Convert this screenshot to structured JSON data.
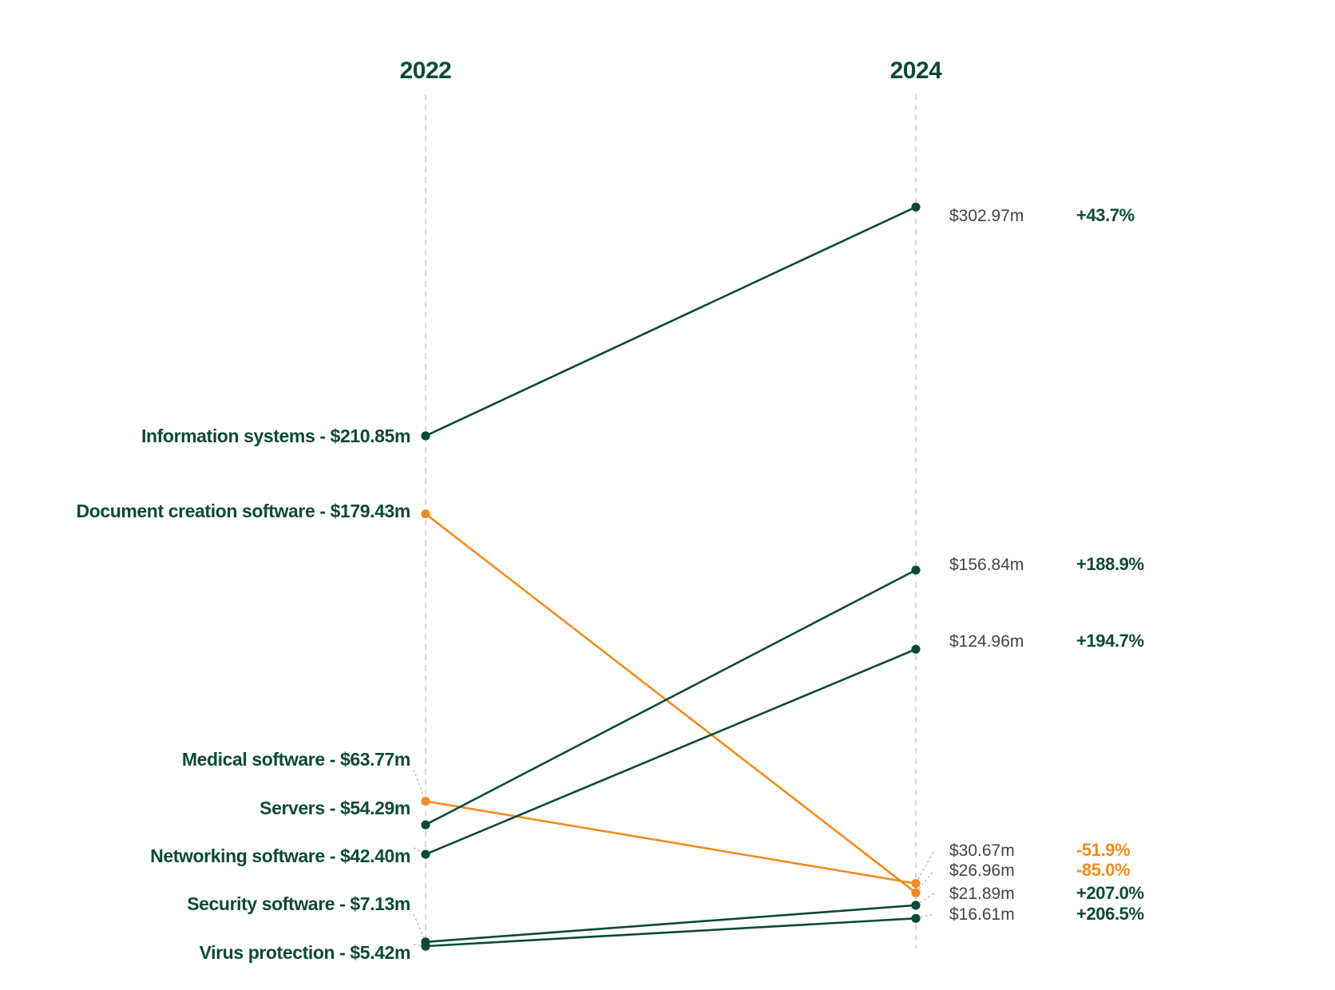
{
  "colors": {
    "increase": "#0d4a35",
    "decrease": "#f28c1e",
    "value_text": "#444444",
    "axis_line": "#cccccc",
    "leader_line": "#a9bdb5"
  },
  "chart_data": {
    "type": "slope",
    "x": [
      "2022",
      "2024"
    ],
    "ylim": [
      0,
      310
    ],
    "grid": false,
    "series": [
      {
        "name": "Information systems",
        "values": [
          210.85,
          302.97
        ],
        "start_label": "Information systems - $210.85m",
        "end_label": "$302.97m",
        "change_label": "+43.7%",
        "direction": "up"
      },
      {
        "name": "Document creation software",
        "values": [
          179.43,
          26.96
        ],
        "start_label": "Document creation software - $179.43m",
        "end_label": "$26.96m",
        "change_label": "-85.0%",
        "direction": "down"
      },
      {
        "name": "Medical software",
        "values": [
          63.77,
          30.67
        ],
        "start_label": "Medical software - $63.77m",
        "end_label": "$30.67m",
        "change_label": "-51.9%",
        "direction": "down"
      },
      {
        "name": "Servers",
        "values": [
          54.29,
          156.84
        ],
        "start_label": "Servers - $54.29m",
        "end_label": "$156.84m",
        "change_label": "+188.9%",
        "direction": "up"
      },
      {
        "name": "Networking software",
        "values": [
          42.4,
          124.96
        ],
        "start_label": "Networking software - $42.40m",
        "end_label": "$124.96m",
        "change_label": "+194.7%",
        "direction": "up"
      },
      {
        "name": "Security software",
        "values": [
          7.13,
          21.89
        ],
        "start_label": "Security software - $7.13m",
        "end_label": "$21.89m",
        "change_label": "+207.0%",
        "direction": "up"
      },
      {
        "name": "Virus protection",
        "values": [
          5.42,
          16.61
        ],
        "start_label": "Virus protection - $5.42m",
        "end_label": "$16.61m",
        "change_label": "+206.5%",
        "direction": "up"
      }
    ]
  }
}
